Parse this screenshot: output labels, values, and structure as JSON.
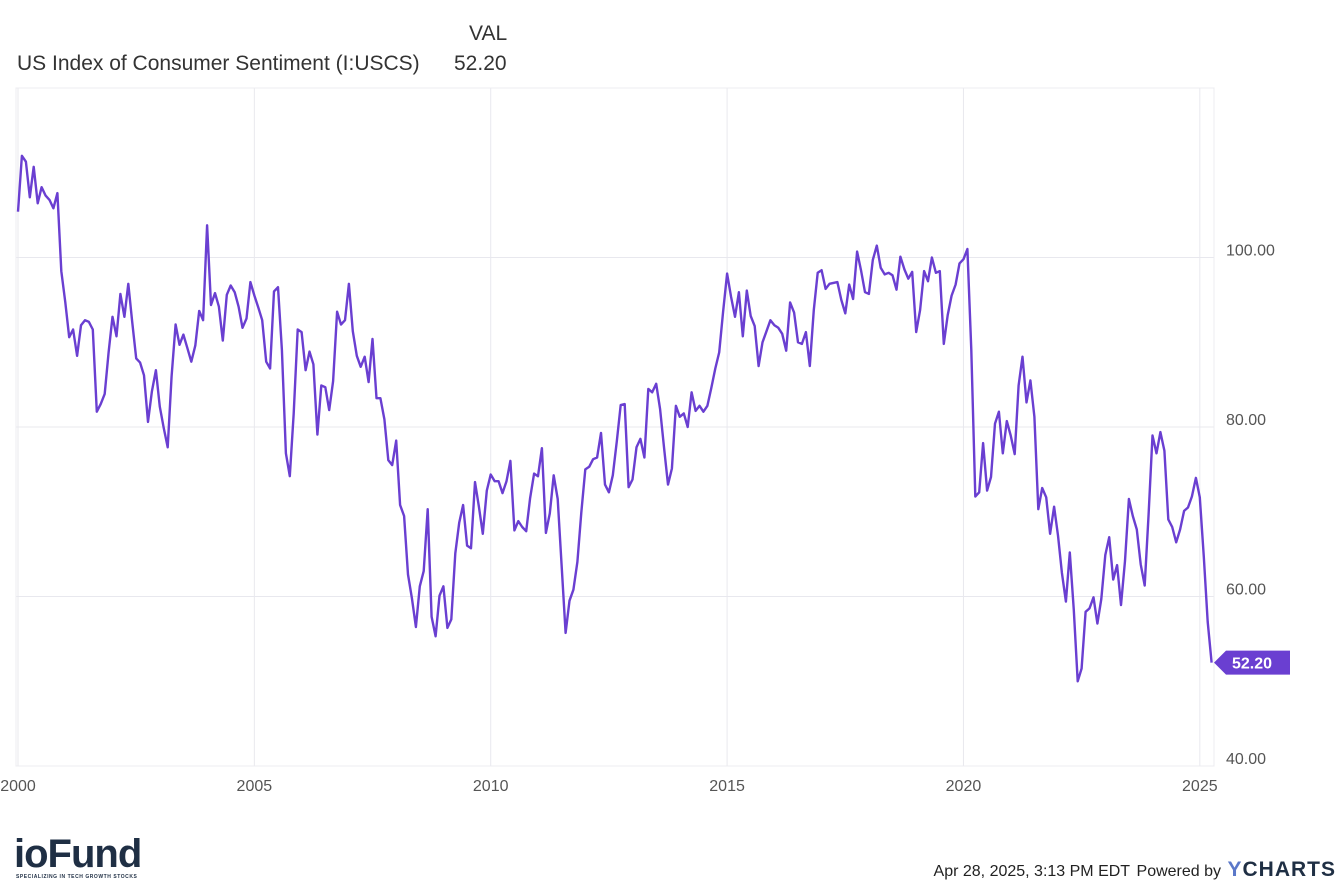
{
  "legend": {
    "value_header": "VAL",
    "series_name": "US Index of Consumer Sentiment (I:USCS)",
    "series_value": "52.20"
  },
  "footer": {
    "logo_text": "ioFund",
    "logo_tagline": "SPECIALIZING IN TECH GROWTH STOCKS",
    "timestamp": "Apr 28, 2025, 3:13 PM EDT",
    "powered_by": "Powered by",
    "brand_y": "Y",
    "brand_rest": "CHARTS"
  },
  "colors": {
    "line": "#6a3fd1",
    "grid": "#e8e8ee",
    "text": "#555555",
    "badge": "#6a3fd1"
  },
  "chart_data": {
    "type": "line",
    "title": "",
    "xlabel": "",
    "ylabel": "",
    "xlim": [
      1999.958,
      2025.3
    ],
    "ylim": [
      40,
      120
    ],
    "x_ticks": [
      {
        "value": 2000,
        "label": "2000"
      },
      {
        "value": 2005,
        "label": "2005"
      },
      {
        "value": 2010,
        "label": "2010"
      },
      {
        "value": 2015,
        "label": "2015"
      },
      {
        "value": 2020,
        "label": "2020"
      },
      {
        "value": 2025,
        "label": "2025"
      }
    ],
    "y_ticks": [
      {
        "value": 40,
        "label": "40.00"
      },
      {
        "value": 60,
        "label": "60.00"
      },
      {
        "value": 80,
        "label": "80.00"
      },
      {
        "value": 100,
        "label": "100.00"
      }
    ],
    "last_value_label": "52.20",
    "grid": true,
    "series": [
      {
        "name": "US Index of Consumer Sentiment (I:USCS)",
        "start": "2000-01",
        "frequency": "monthly",
        "values": [
          105.4,
          112.0,
          111.3,
          107.1,
          110.7,
          106.4,
          108.3,
          107.3,
          106.8,
          105.8,
          107.6,
          98.4,
          94.7,
          90.6,
          91.5,
          88.4,
          92.0,
          92.6,
          92.4,
          91.5,
          81.8,
          82.7,
          83.9,
          88.8,
          93.0,
          90.7,
          95.7,
          93.0,
          96.9,
          92.4,
          88.1,
          87.6,
          86.1,
          80.6,
          84.2,
          86.7,
          82.4,
          79.9,
          77.6,
          86.0,
          92.1,
          89.7,
          90.9,
          89.3,
          87.7,
          89.6,
          93.7,
          92.6,
          103.8,
          94.4,
          95.8,
          94.2,
          90.2,
          95.6,
          96.7,
          95.9,
          94.2,
          91.7,
          92.8,
          97.1,
          95.5,
          94.1,
          92.6,
          87.7,
          86.9,
          96.0,
          96.5,
          89.1,
          76.9,
          74.2,
          81.6,
          91.5,
          91.2,
          86.7,
          88.9,
          87.4,
          79.1,
          84.9,
          84.7,
          82.0,
          85.4,
          93.6,
          92.1,
          92.6,
          96.9,
          91.3,
          88.4,
          87.1,
          88.3,
          85.3,
          90.4,
          83.4,
          83.4,
          80.9,
          76.1,
          75.5,
          78.4,
          70.8,
          69.5,
          62.6,
          59.8,
          56.4,
          61.2,
          63.0,
          70.3,
          57.6,
          55.3,
          60.1,
          61.2,
          56.3,
          57.3,
          65.1,
          68.7,
          70.8,
          66.0,
          65.7,
          73.5,
          70.6,
          67.4,
          72.5,
          74.4,
          73.6,
          73.6,
          72.2,
          73.6,
          76.0,
          67.8,
          68.9,
          68.2,
          67.7,
          71.6,
          74.5,
          74.2,
          77.5,
          67.5,
          69.8,
          74.3,
          71.5,
          63.7,
          55.7,
          59.5,
          60.8,
          64.1,
          69.9,
          75.0,
          75.3,
          76.2,
          76.4,
          79.3,
          73.2,
          72.3,
          74.3,
          78.3,
          82.6,
          82.7,
          72.9,
          73.8,
          77.6,
          78.6,
          76.4,
          84.5,
          84.1,
          85.1,
          82.1,
          77.5,
          73.2,
          75.1,
          82.5,
          81.2,
          81.6,
          80.0,
          84.1,
          81.9,
          82.5,
          81.8,
          82.5,
          84.6,
          86.9,
          88.8,
          93.6,
          98.1,
          95.4,
          93.0,
          95.9,
          90.7,
          96.1,
          93.1,
          91.9,
          87.2,
          90.0,
          91.3,
          92.6,
          92.0,
          91.7,
          91.0,
          89.0,
          94.7,
          93.5,
          90.0,
          89.8,
          91.2,
          87.2,
          93.8,
          98.2,
          98.5,
          96.3,
          96.9,
          97.0,
          97.1,
          95.0,
          93.4,
          96.8,
          95.1,
          100.7,
          98.5,
          95.9,
          95.7,
          99.7,
          101.4,
          98.8,
          98.0,
          98.2,
          97.9,
          96.2,
          100.1,
          98.6,
          97.5,
          98.3,
          91.2,
          93.8,
          98.4,
          97.2,
          100.0,
          98.2,
          98.4,
          89.8,
          93.2,
          95.5,
          96.8,
          99.3,
          99.8,
          101.0,
          89.1,
          71.8,
          72.3,
          78.1,
          72.5,
          74.1,
          80.4,
          81.8,
          76.9,
          80.7,
          79.0,
          76.8,
          84.9,
          88.3,
          82.9,
          85.5,
          81.2,
          70.3,
          72.8,
          71.7,
          67.4,
          70.6,
          67.2,
          62.8,
          59.4,
          65.2,
          58.4,
          50.0,
          51.5,
          58.2,
          58.6,
          59.9,
          56.8,
          59.7,
          64.9,
          67.0,
          62.0,
          63.7,
          59.0,
          64.2,
          71.5,
          69.5,
          67.9,
          63.8,
          61.3,
          69.7,
          79.0,
          76.9,
          79.4,
          77.2,
          69.1,
          68.2,
          66.4,
          67.9,
          70.1,
          70.5,
          71.8,
          74.0,
          71.7,
          64.7,
          57.0,
          52.2
        ]
      }
    ]
  }
}
